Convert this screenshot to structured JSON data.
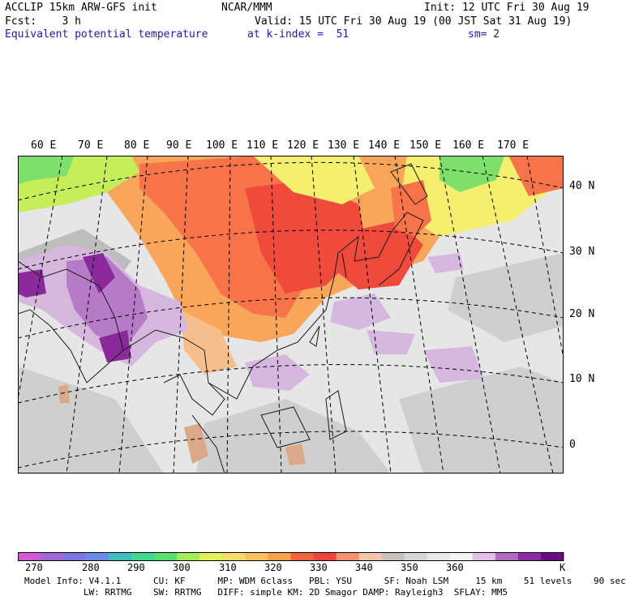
{
  "header": {
    "model": "ACCLIP 15km ARW-GFS init",
    "org": "NCAR/MMM",
    "init": "Init: 12 UTC Fri 30 Aug 19",
    "fcst": "Fcst:    3 h",
    "valid": "Valid: 15 UTC Fri 30 Aug 19 (00 JST Sat 31 Aug 19)",
    "field": "Equivalent potential temperature",
    "level": "at k-index =  51",
    "smooth": "sm= 2"
  },
  "map": {
    "lon_labels": [
      "60 E",
      "70 E",
      "80 E",
      "90 E",
      "100 E",
      "110 E",
      "120 E",
      "130 E",
      "140 E",
      "150 E",
      "160 E",
      "170 E"
    ],
    "lat_labels": [
      "40 N",
      "30 N",
      "20 N",
      "10 N",
      "0"
    ],
    "colors": {
      "purple_dark": "#8a2a9a",
      "purple": "#b57bc6",
      "lavender": "#d6b8de",
      "red": "#ef4a3c",
      "orange_red": "#f7744a",
      "orange": "#f9a55a",
      "peach": "#f6bf8d",
      "yellow": "#f4ef6e",
      "yellow_green": "#c6ee5a",
      "green": "#7ee06b",
      "gray_light": "#e6e6e6",
      "gray": "#cfcfcf",
      "gray_dark": "#bdbdbd",
      "tan": "#d9a98a"
    }
  },
  "colorbar": {
    "colors": [
      "#d25ad7",
      "#a366d6",
      "#7b78e6",
      "#6a8ce6",
      "#3fc0c0",
      "#3fd88f",
      "#56e070",
      "#a4ee5a",
      "#e4f05a",
      "#f6dc6a",
      "#f8bf5c",
      "#f8a24a",
      "#f5643a",
      "#ee463a",
      "#f6906f",
      "#f6c4a6",
      "#c8c0bd",
      "#d6d6d6",
      "#e8e8e8",
      "#f4f4f4",
      "#e2bee8",
      "#b36ac2",
      "#8c2aa6",
      "#6a0a84"
    ],
    "labels": [
      "270",
      "280",
      "290",
      "300",
      "310",
      "320",
      "330",
      "340",
      "350",
      "360",
      "K"
    ]
  },
  "footer": {
    "line1": "Model Info: V4.1.1      CU: KF      MP: WDM 6class   PBL: YSU      SF: Noah LSM     15 km    51 levels    90 sec",
    "line2": "           LW: RRTMG    SW: RRTMG   DIFF: simple KM: 2D Smagor DAMP: Rayleigh3  SFLAY: MM5"
  }
}
